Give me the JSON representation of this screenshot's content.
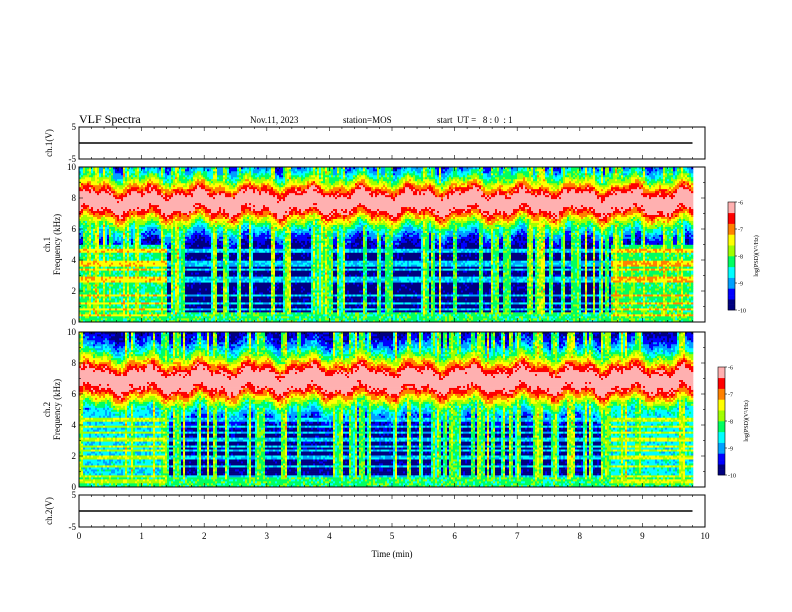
{
  "header": {
    "title": "VLF Spectra",
    "date": "Nov.11, 2023",
    "station": "station=MOS",
    "start_ut": "start  UT =   8 : 0  : 1"
  },
  "chart_data": [
    {
      "type": "line",
      "panel": "ch1-waveform",
      "ylabel": "ch.1(V)",
      "ylim": [
        -5,
        5
      ],
      "yticks": [
        "5",
        "-5"
      ],
      "series": [
        {
          "x": [
            0,
            9.8
          ],
          "values": [
            0,
            0
          ]
        }
      ]
    },
    {
      "type": "heatmap",
      "panel": "ch1-spectrogram",
      "ylabel": "ch.1",
      "ylabel2": "Frequency (kHz)",
      "ylim": [
        0,
        10
      ],
      "yticks": [
        "0",
        "2",
        "4",
        "6",
        "8",
        "10"
      ],
      "xlim": [
        0,
        10
      ],
      "colorbar": {
        "label": "log(PSD)(V²/Hz)",
        "range": [
          -10,
          -6
        ],
        "ticks": [
          "-6",
          "-7",
          "-8",
          "-9",
          "-10"
        ]
      },
      "regions": [
        {
          "t0": 0.0,
          "t1": 1.4,
          "low_band_level": -8.3
        },
        {
          "t0": 1.4,
          "t1": 8.5,
          "low_band_level": -9.8
        },
        {
          "t0": 8.5,
          "t1": 9.8,
          "low_band_level": -8.2
        }
      ],
      "intense_band_khz": [
        6.0,
        9.5
      ]
    },
    {
      "type": "heatmap",
      "panel": "ch2-spectrogram",
      "ylabel": "ch.2",
      "ylabel2": "Frequency (kHz)",
      "ylim": [
        0,
        10
      ],
      "yticks": [
        "0",
        "2",
        "4",
        "6",
        "8",
        "10"
      ],
      "xlim": [
        0,
        10
      ],
      "colorbar": {
        "label": "log(PSD)(V²/Hz)",
        "range": [
          -10,
          -6
        ],
        "ticks": [
          "-6",
          "-7",
          "-8",
          "-9",
          "-10"
        ]
      },
      "regions": [
        {
          "t0": 0.0,
          "t1": 1.4,
          "low_band_level": -8.7
        },
        {
          "t0": 1.4,
          "t1": 8.5,
          "low_band_level": -9.8
        },
        {
          "t0": 8.5,
          "t1": 9.8,
          "low_band_level": -8.6
        }
      ],
      "intense_band_khz": [
        5.0,
        8.8
      ]
    },
    {
      "type": "line",
      "panel": "ch2-waveform",
      "ylabel": "ch.2(V)",
      "ylim": [
        -5,
        5
      ],
      "yticks": [
        "5",
        "-5"
      ],
      "series": [
        {
          "x": [
            0,
            9.8
          ],
          "values": [
            0,
            0
          ]
        }
      ]
    }
  ],
  "xaxis": {
    "label": "Time (min)",
    "ticks": [
      "0",
      "1",
      "2",
      "3",
      "4",
      "5",
      "6",
      "7",
      "8",
      "9",
      "10"
    ],
    "xlim": [
      0,
      10
    ]
  },
  "colors": {
    "colormap": [
      "#000080",
      "#0000ff",
      "#00a0ff",
      "#00ffff",
      "#00ff60",
      "#a0ff00",
      "#ffff00",
      "#ff8000",
      "#ff0000",
      "#ffb0b0"
    ]
  }
}
